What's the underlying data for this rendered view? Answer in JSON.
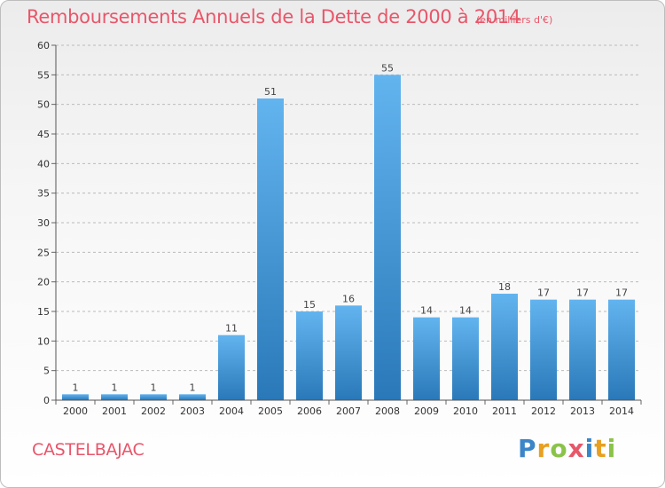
{
  "header": {
    "title": "Remboursements Annuels de la Dette de 2000 à 2014",
    "unit": "(en milliers d'€)"
  },
  "footer": {
    "commune": "CASTELBAJAC",
    "brand_letters": [
      {
        "ch": "P",
        "color": "#3a86c8"
      },
      {
        "ch": "r",
        "color": "#e8a020"
      },
      {
        "ch": "o",
        "color": "#8bc34a"
      },
      {
        "ch": "x",
        "color": "#e8566a"
      },
      {
        "ch": "i",
        "color": "#3a86c8"
      },
      {
        "ch": "t",
        "color": "#e8a020"
      },
      {
        "ch": "i",
        "color": "#8bc34a"
      }
    ]
  },
  "colors": {
    "accent_text": "#e8566a",
    "bar_top": "#62b4ef",
    "bar_bottom": "#2a78b8",
    "grid": "#bbbbbb"
  },
  "chart_data": {
    "type": "bar",
    "categories": [
      "2000",
      "2001",
      "2002",
      "2003",
      "2004",
      "2005",
      "2006",
      "2007",
      "2008",
      "2009",
      "2010",
      "2011",
      "2012",
      "2013",
      "2014"
    ],
    "values": [
      1,
      1,
      1,
      1,
      11,
      51,
      15,
      16,
      55,
      14,
      14,
      18,
      17,
      17,
      17
    ],
    "value_labels": [
      "1",
      "1",
      "1",
      "1",
      "11",
      "51",
      "15",
      "16",
      "55",
      "14",
      "14",
      "18",
      "17",
      "17",
      "17"
    ],
    "ylim": [
      0,
      60
    ],
    "yticks": [
      0,
      5,
      10,
      15,
      20,
      25,
      30,
      35,
      40,
      45,
      50,
      55,
      60
    ],
    "grid": "horizontal dashed",
    "legend": "none"
  }
}
